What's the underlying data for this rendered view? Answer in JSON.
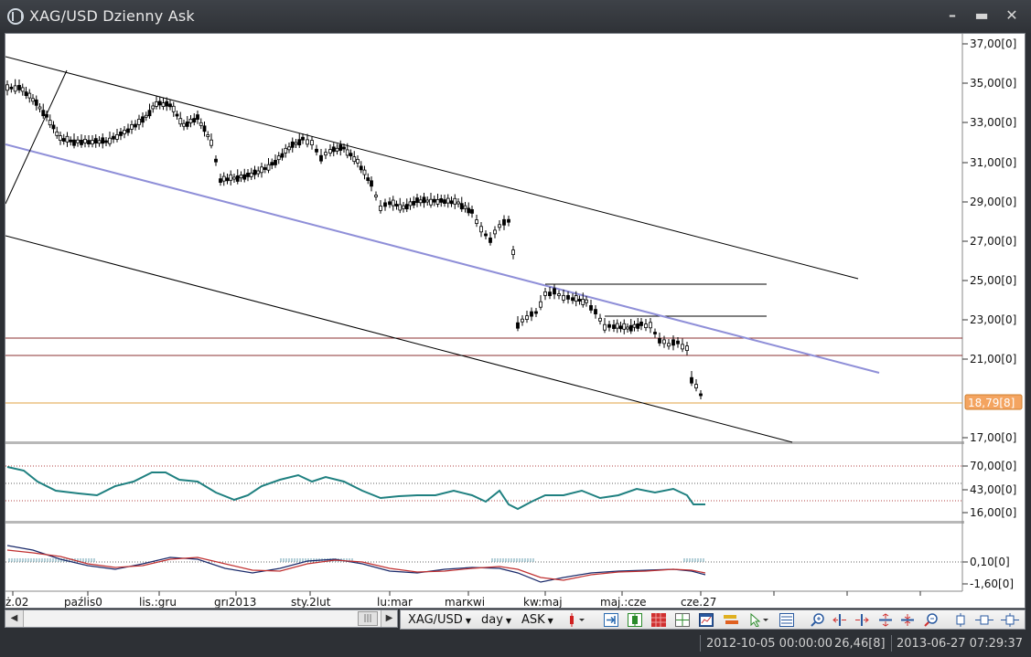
{
  "window": {
    "title": "XAG/USD Dzienny Ask",
    "minimize": "–",
    "maximize": "▬",
    "close": "✕"
  },
  "price_axis": {
    "labels": [
      "37,00[0]",
      "35,00[0]",
      "33,00[0]",
      "31,00[0]",
      "29,00[0]",
      "27,00[0]",
      "25,00[0]",
      "23,00[0]",
      "21,00[0]",
      "17,00[0]"
    ],
    "current_price": "18,79[8]",
    "current_price_color": "#f4a460"
  },
  "oscillator_axis": {
    "labels": [
      "70,00[0]",
      "43,00[0]",
      "16,00[0]"
    ]
  },
  "macd_axis": {
    "labels": [
      "0,10[0]",
      "-1,60[0]"
    ]
  },
  "date_axis": {
    "labels": [
      "ż.02",
      "paźlis0",
      "lis.:gru",
      "grı2013",
      "sty.2lut",
      "lu:mar",
      "marĸwi",
      "kw:maj",
      "maj.:cze",
      "cze.27"
    ]
  },
  "toolbar": {
    "instrument": "XAG/USD",
    "period": "day",
    "side": "ASK",
    "icons": [
      "candle-type-icon",
      "scroll-to-end-icon",
      "chart-candles-icon",
      "grid-red-icon",
      "crosshair-icon",
      "chart-window-icon",
      "indicator-icon",
      "cursor-icon",
      "drawing-icon",
      "zoom-in-icon",
      "stretch-left-icon",
      "stretch-right-icon",
      "expand-vertical-icon",
      "shrink-vertical-icon",
      "zoom-out-icon",
      "time-marker-icon",
      "period-separator-icon",
      "period-buttons-icon"
    ]
  },
  "status": {
    "cursor_time": "2012-10-05 00:00:00",
    "cursor_value": "26,46[8]",
    "clock": "2013-06-27 07:29:37"
  },
  "colors": {
    "channel_line": "#000000",
    "median_line": "#8f8fd8",
    "oscillator_line": "#1f8080",
    "macd_line_1": "#1a2a6a",
    "macd_line_2": "#c03030",
    "macd_hist": "#6aa0b0",
    "hline_red": "#8b3030",
    "hline_orange": "#e0a040"
  }
}
